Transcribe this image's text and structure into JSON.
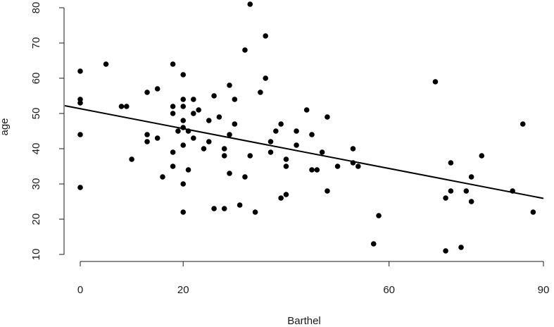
{
  "chart_data": {
    "type": "scatter",
    "title": "",
    "xlabel": "Barthel",
    "ylabel": "age",
    "xlim": [
      -3,
      90
    ],
    "ylim": [
      10,
      80
    ],
    "x_ticks": [
      0,
      20,
      60,
      90
    ],
    "y_ticks": [
      10,
      20,
      30,
      40,
      50,
      60,
      70,
      80
    ],
    "grid": false,
    "colors": {
      "points": "#000000",
      "line": "#000000",
      "axes": "#1a1a1a"
    },
    "regression_line": {
      "x": [
        -3,
        90
      ],
      "y": [
        52.2,
        25.9
      ]
    },
    "points": [
      {
        "x": 0,
        "y": 62
      },
      {
        "x": 0,
        "y": 54
      },
      {
        "x": 0,
        "y": 53
      },
      {
        "x": 0,
        "y": 44
      },
      {
        "x": 0,
        "y": 29
      },
      {
        "x": 5,
        "y": 64
      },
      {
        "x": 8,
        "y": 52
      },
      {
        "x": 9,
        "y": 52
      },
      {
        "x": 10,
        "y": 37
      },
      {
        "x": 13,
        "y": 56
      },
      {
        "x": 13,
        "y": 44
      },
      {
        "x": 13,
        "y": 42
      },
      {
        "x": 15,
        "y": 57
      },
      {
        "x": 15,
        "y": 43
      },
      {
        "x": 16,
        "y": 32
      },
      {
        "x": 18,
        "y": 64
      },
      {
        "x": 18,
        "y": 52
      },
      {
        "x": 18,
        "y": 50
      },
      {
        "x": 18,
        "y": 39
      },
      {
        "x": 18,
        "y": 35
      },
      {
        "x": 19,
        "y": 45
      },
      {
        "x": 20,
        "y": 61
      },
      {
        "x": 20,
        "y": 54
      },
      {
        "x": 20,
        "y": 52
      },
      {
        "x": 20,
        "y": 48
      },
      {
        "x": 20,
        "y": 46
      },
      {
        "x": 20,
        "y": 41
      },
      {
        "x": 20,
        "y": 30
      },
      {
        "x": 20,
        "y": 22
      },
      {
        "x": 21,
        "y": 45
      },
      {
        "x": 21,
        "y": 34
      },
      {
        "x": 22,
        "y": 54
      },
      {
        "x": 22,
        "y": 50
      },
      {
        "x": 22,
        "y": 43
      },
      {
        "x": 23,
        "y": 51
      },
      {
        "x": 24,
        "y": 40
      },
      {
        "x": 25,
        "y": 48
      },
      {
        "x": 25,
        "y": 42
      },
      {
        "x": 26,
        "y": 55
      },
      {
        "x": 26,
        "y": 23
      },
      {
        "x": 27,
        "y": 49
      },
      {
        "x": 28,
        "y": 40
      },
      {
        "x": 28,
        "y": 38
      },
      {
        "x": 28,
        "y": 23
      },
      {
        "x": 29,
        "y": 58
      },
      {
        "x": 29,
        "y": 44
      },
      {
        "x": 29,
        "y": 33
      },
      {
        "x": 30,
        "y": 54
      },
      {
        "x": 30,
        "y": 47
      },
      {
        "x": 31,
        "y": 24
      },
      {
        "x": 32,
        "y": 68
      },
      {
        "x": 32,
        "y": 32
      },
      {
        "x": 33,
        "y": 81
      },
      {
        "x": 33,
        "y": 38
      },
      {
        "x": 34,
        "y": 22
      },
      {
        "x": 35,
        "y": 56
      },
      {
        "x": 36,
        "y": 72
      },
      {
        "x": 36,
        "y": 60
      },
      {
        "x": 37,
        "y": 42
      },
      {
        "x": 37,
        "y": 39
      },
      {
        "x": 38,
        "y": 45
      },
      {
        "x": 39,
        "y": 47
      },
      {
        "x": 39,
        "y": 26
      },
      {
        "x": 40,
        "y": 37
      },
      {
        "x": 40,
        "y": 35
      },
      {
        "x": 40,
        "y": 27
      },
      {
        "x": 42,
        "y": 45
      },
      {
        "x": 42,
        "y": 41
      },
      {
        "x": 44,
        "y": 51
      },
      {
        "x": 45,
        "y": 44
      },
      {
        "x": 45,
        "y": 34
      },
      {
        "x": 46,
        "y": 34
      },
      {
        "x": 47,
        "y": 39
      },
      {
        "x": 48,
        "y": 49
      },
      {
        "x": 48,
        "y": 28
      },
      {
        "x": 50,
        "y": 35
      },
      {
        "x": 53,
        "y": 40
      },
      {
        "x": 53,
        "y": 36
      },
      {
        "x": 54,
        "y": 35
      },
      {
        "x": 57,
        "y": 13
      },
      {
        "x": 58,
        "y": 21
      },
      {
        "x": 69,
        "y": 59
      },
      {
        "x": 71,
        "y": 26
      },
      {
        "x": 71,
        "y": 11
      },
      {
        "x": 72,
        "y": 36
      },
      {
        "x": 72,
        "y": 28
      },
      {
        "x": 74,
        "y": 12
      },
      {
        "x": 75,
        "y": 28
      },
      {
        "x": 76,
        "y": 32
      },
      {
        "x": 76,
        "y": 25
      },
      {
        "x": 78,
        "y": 38
      },
      {
        "x": 84,
        "y": 28
      },
      {
        "x": 86,
        "y": 47
      },
      {
        "x": 88,
        "y": 22
      }
    ]
  }
}
